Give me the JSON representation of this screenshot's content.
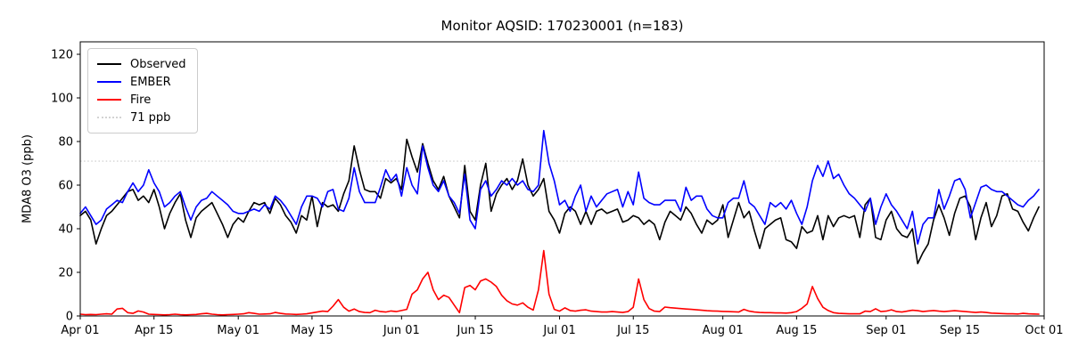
{
  "chart_data": {
    "type": "line",
    "title": "Monitor AQSID: 170230001 (n=183)",
    "xlabel": "",
    "ylabel": "MDA8 O3 (ppb)",
    "ylim": [
      0,
      125.7
    ],
    "y_ticks": [
      0,
      20,
      40,
      60,
      80,
      100,
      120
    ],
    "x_tick_days": [
      0,
      14,
      30,
      44,
      61,
      75,
      91,
      105,
      122,
      136,
      153,
      167,
      183
    ],
    "x_tick_labels": [
      "Apr 01",
      "Apr 15",
      "May 01",
      "May 15",
      "Jun 01",
      "Jun 15",
      "Jul 01",
      "Jul 15",
      "Aug 01",
      "Aug 15",
      "Sep 01",
      "Sep 15",
      "Oct 01"
    ],
    "x_range_days": 183,
    "grid": false,
    "legend_position": "upper left",
    "threshold": {
      "label": "71 ppb",
      "value": 71,
      "color": "#d3d3d3",
      "style": "dotted"
    },
    "series": [
      {
        "name": "Observed",
        "color": "#000000",
        "values": [
          46,
          48,
          44,
          33,
          40,
          46,
          48,
          51,
          54,
          57,
          58,
          53,
          55,
          52,
          58,
          50,
          40,
          47,
          52,
          56,
          44,
          36,
          45,
          48,
          50,
          52,
          47,
          42,
          36,
          42,
          45,
          43,
          48,
          52,
          51,
          52,
          47,
          54,
          51,
          46,
          43,
          38,
          46,
          44,
          55,
          41,
          52,
          50,
          51,
          48,
          56,
          62,
          78,
          67,
          58,
          57,
          57,
          54,
          63,
          61,
          63,
          58,
          81,
          73,
          66,
          79,
          70,
          62,
          58,
          64,
          55,
          50,
          45,
          69,
          48,
          44,
          60,
          70,
          48,
          56,
          60,
          63,
          58,
          62,
          72,
          60,
          55,
          58,
          63,
          48,
          44,
          38,
          47,
          50,
          48,
          42,
          48,
          42,
          48,
          49,
          47,
          48,
          49,
          43,
          44,
          46,
          45,
          42,
          44,
          42,
          35,
          43,
          48,
          46,
          44,
          50,
          47,
          42,
          38,
          44,
          42,
          44,
          51,
          36,
          44,
          52,
          45,
          48,
          39,
          31,
          40,
          42,
          44,
          45,
          35,
          34,
          31,
          41,
          38,
          39,
          46,
          35,
          46,
          41,
          45,
          46,
          45,
          46,
          36,
          51,
          54,
          36,
          35,
          44,
          48,
          40,
          37,
          36,
          40,
          24,
          29,
          33,
          44,
          51,
          45,
          37,
          47,
          54,
          55,
          50,
          35,
          45,
          52,
          41,
          46,
          55,
          56,
          49,
          48,
          43,
          39,
          45,
          50
        ]
      },
      {
        "name": "EMBER",
        "color": "#0000ff",
        "values": [
          47,
          50,
          46,
          42,
          44,
          49,
          51,
          53,
          52,
          57,
          61,
          57,
          60,
          67,
          61,
          57,
          50,
          52,
          55,
          57,
          50,
          44,
          50,
          53,
          54,
          57,
          55,
          53,
          51,
          48,
          47,
          47,
          48,
          49,
          48,
          51,
          49,
          55,
          53,
          50,
          46,
          42,
          50,
          55,
          55,
          54,
          50,
          57,
          58,
          49,
          48,
          54,
          68,
          57,
          52,
          52,
          52,
          59,
          67,
          62,
          65,
          55,
          68,
          60,
          56,
          78,
          68,
          60,
          57,
          62,
          55,
          52,
          47,
          65,
          44,
          40,
          58,
          62,
          55,
          58,
          62,
          60,
          63,
          60,
          62,
          58,
          57,
          60,
          85,
          70,
          62,
          51,
          53,
          48,
          55,
          60,
          48,
          55,
          50,
          53,
          56,
          57,
          58,
          50,
          57,
          51,
          66,
          54,
          52,
          51,
          51,
          53,
          53,
          53,
          48,
          59,
          53,
          55,
          55,
          49,
          46,
          45,
          45,
          52,
          54,
          54,
          62,
          52,
          50,
          46,
          42,
          52,
          50,
          52,
          49,
          53,
          47,
          42,
          50,
          62,
          69,
          64,
          71,
          63,
          65,
          60,
          56,
          54,
          51,
          48,
          54,
          42,
          50,
          56,
          51,
          48,
          44,
          40,
          48,
          33,
          42,
          45,
          45,
          58,
          49,
          55,
          62,
          63,
          58,
          45,
          52,
          59,
          60,
          58,
          57,
          57,
          55,
          53,
          51,
          50,
          53,
          55,
          58
        ]
      },
      {
        "name": "Fire",
        "color": "#ff0000",
        "values": [
          0.8,
          0.6,
          0.7,
          0.6,
          0.8,
          1.0,
          0.8,
          3.2,
          3.5,
          1.5,
          1.2,
          2.3,
          1.8,
          0.8,
          0.7,
          0.6,
          0.5,
          0.6,
          0.8,
          0.6,
          0.5,
          0.6,
          0.7,
          1.0,
          1.2,
          0.8,
          0.6,
          0.5,
          0.6,
          0.7,
          0.8,
          1.0,
          1.5,
          1.2,
          0.8,
          0.9,
          1.0,
          1.6,
          1.2,
          0.9,
          0.8,
          0.7,
          0.8,
          1.0,
          1.4,
          1.8,
          2.2,
          2.0,
          4.5,
          7.5,
          4.0,
          2.2,
          3.2,
          2.0,
          1.6,
          1.5,
          2.6,
          2.0,
          1.8,
          2.3,
          2.0,
          2.5,
          3.0,
          10,
          12,
          17,
          20,
          12,
          7.5,
          9.5,
          8.5,
          5.0,
          1.5,
          13,
          14,
          12,
          16,
          17,
          15.5,
          13.5,
          9.5,
          7.0,
          5.5,
          5.0,
          6.0,
          4.0,
          2.7,
          12,
          30,
          10,
          3.0,
          2.2,
          3.7,
          2.5,
          2.2,
          2.6,
          2.8,
          2.2,
          2.0,
          1.8,
          1.8,
          2.0,
          1.8,
          1.6,
          2.0,
          4.0,
          17,
          7.5,
          3.4,
          2.2,
          2.0,
          4.1,
          3.8,
          3.6,
          3.4,
          3.2,
          3.0,
          2.8,
          2.6,
          2.4,
          2.3,
          2.2,
          2.1,
          2.0,
          1.9,
          1.8,
          3.0,
          2.2,
          1.8,
          1.6,
          1.5,
          1.5,
          1.4,
          1.4,
          1.3,
          1.5,
          2.0,
          3.5,
          5.5,
          13.5,
          8.0,
          4.0,
          2.5,
          1.5,
          1.2,
          1.1,
          1.0,
          1.0,
          1.0,
          2.2,
          2.0,
          3.3,
          2.0,
          2.2,
          2.8,
          2.0,
          1.8,
          2.2,
          2.6,
          2.4,
          2.0,
          2.3,
          2.5,
          2.2,
          2.0,
          2.2,
          2.4,
          2.2,
          2.0,
          1.8,
          1.6,
          1.8,
          1.6,
          1.3,
          1.2,
          1.1,
          1.0,
          1.0,
          0.9,
          1.2,
          1.0,
          0.9,
          0.8
        ]
      }
    ]
  }
}
